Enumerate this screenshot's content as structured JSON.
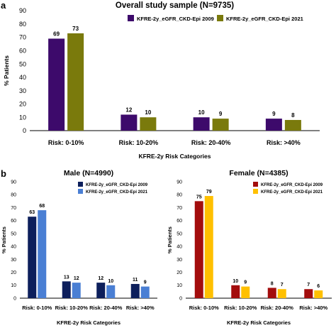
{
  "panel_labels": [
    "a",
    "b"
  ],
  "chart_data": [
    {
      "type": "bar",
      "title": "Overall study sample (N=9735)",
      "xlabel": "KFRE-2y Risk Categories",
      "ylabel": "% Patients",
      "categories": [
        "Risk: 0-10%",
        "Risk: 10-20%",
        "Risk: 20-40%",
        "Risk: >40%"
      ],
      "ylim": [
        0,
        90
      ],
      "yticks": [
        0,
        10,
        20,
        30,
        40,
        50,
        60,
        70,
        80,
        90
      ],
      "legend": "top-right",
      "series": [
        {
          "name": "KFRE-2y_eGFR_CKD-Epi 2009",
          "color": "#3d0a6b",
          "values": [
            69,
            12,
            10,
            9
          ]
        },
        {
          "name": "KFRE-2y_eGFR_CKD-Epi 2021",
          "color": "#7a7a0c",
          "values": [
            73,
            10,
            9,
            8
          ]
        }
      ]
    },
    {
      "type": "bar",
      "title": "Male (N=4990)",
      "xlabel": "KFRE-2y Risk Categories",
      "ylabel": "% Patients",
      "categories": [
        "Risk: 0-10%",
        "Risk: 10-20%",
        "Risk: 20-40%",
        "Risk: >40%"
      ],
      "ylim": [
        0,
        90
      ],
      "yticks": [
        0,
        10,
        20,
        30,
        40,
        50,
        60,
        70,
        80,
        90
      ],
      "legend": "top-right",
      "series": [
        {
          "name": "KFRE-2y_eGFR_CKD-Epi 2009",
          "color": "#0d1f5c",
          "values": [
            63,
            13,
            12,
            11
          ]
        },
        {
          "name": "KFRE-2y_eGFR_CKD-Epi 2021",
          "color": "#4a7fd4",
          "values": [
            68,
            12,
            10,
            9
          ]
        }
      ]
    },
    {
      "type": "bar",
      "title": "Female (N=4385)",
      "xlabel": "KFRE-2y Risk Categories",
      "ylabel": "% Patients",
      "categories": [
        "Risk: 0-10%",
        "Risk: 10-20%",
        "Risk: 20-40%",
        "Risk: >40%"
      ],
      "ylim": [
        0,
        90
      ],
      "yticks": [
        0,
        10,
        20,
        30,
        40,
        50,
        60,
        70,
        80,
        90
      ],
      "legend": "top-right",
      "series": [
        {
          "name": "KFRE-2y_eGFR_CKD-Epi 2009",
          "color": "#a30d0d",
          "values": [
            75,
            10,
            8,
            7
          ]
        },
        {
          "name": "KFRE-2y_eGFR_CKD-Epi 2021",
          "color": "#ffc000",
          "values": [
            79,
            9,
            7,
            6
          ]
        }
      ]
    }
  ]
}
